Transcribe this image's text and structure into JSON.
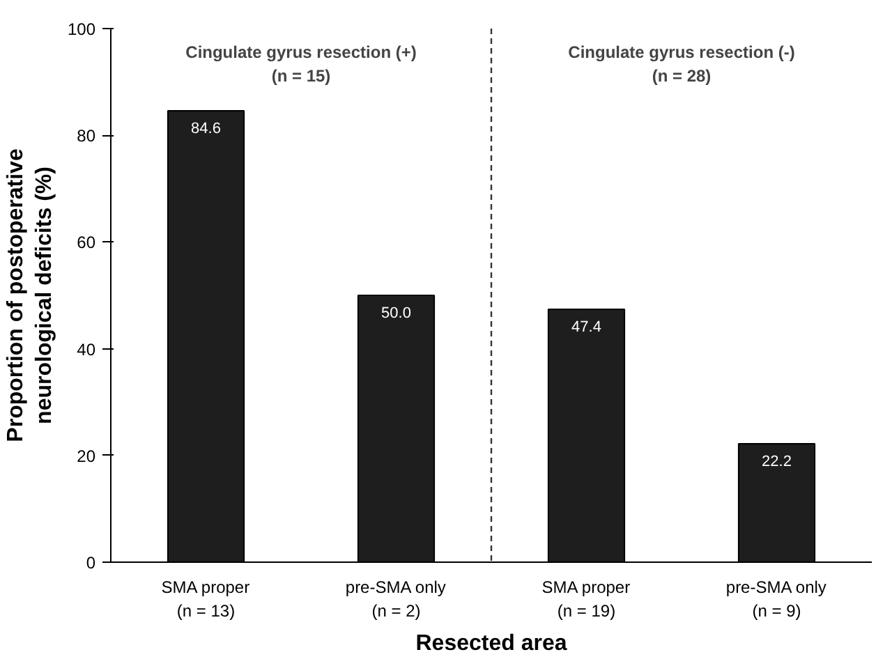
{
  "chart_data": {
    "type": "bar",
    "xlabel": "Resected area",
    "ylabel": "Proportion of postoperative\nneurological deficits (%)",
    "categories": [
      "SMA proper\n(n = 13)",
      "pre-SMA only\n(n = 2)",
      "SMA proper\n(n = 19)",
      "pre-SMA only\n(n = 9)"
    ],
    "values": [
      84.6,
      50.0,
      47.4,
      22.2
    ],
    "value_labels": [
      "84.6",
      "50.0",
      "47.4",
      "22.2"
    ],
    "color": "#1e1e1e",
    "ylim": [
      0,
      100
    ],
    "yticks": [
      0,
      20,
      40,
      60,
      80,
      100
    ],
    "grid": false,
    "annotations": [
      "Cingulate gyrus resection (+)\n(n = 15)",
      "Cingulate gyrus resection (-)\n(n = 28)"
    ]
  }
}
